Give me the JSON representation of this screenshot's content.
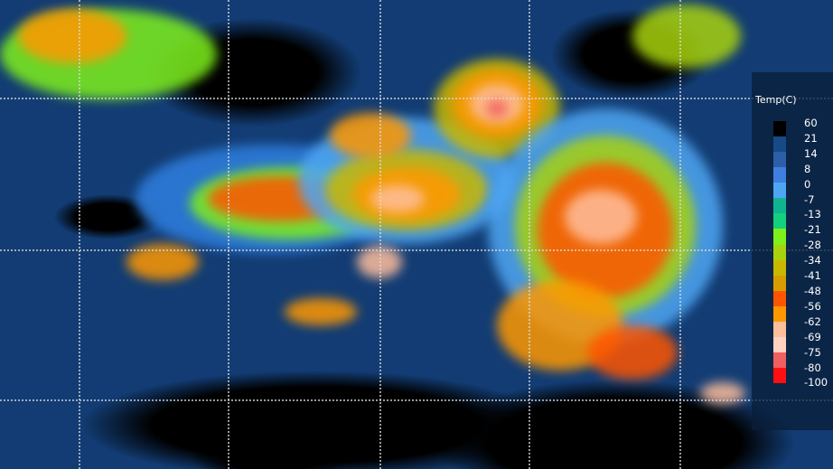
{
  "legend": {
    "title": "Temp(C)",
    "labels": [
      "60",
      "21",
      "14",
      "8",
      "0",
      "-7",
      "-13",
      "-21",
      "-28",
      "-34",
      "-41",
      "-48",
      "-56",
      "-62",
      "-69",
      "-75",
      "-80",
      "-100"
    ],
    "colors": [
      "#000000",
      "#174a86",
      "#2c5fa6",
      "#3f7fe0",
      "#4ea6f2",
      "#10b590",
      "#12d07e",
      "#7ef01c",
      "#a8d20e",
      "#c9b800",
      "#d89c00",
      "#ff5500",
      "#ff9800",
      "#ffbe9c",
      "#ffd2c2",
      "#f06060",
      "#ff1010"
    ]
  }
}
